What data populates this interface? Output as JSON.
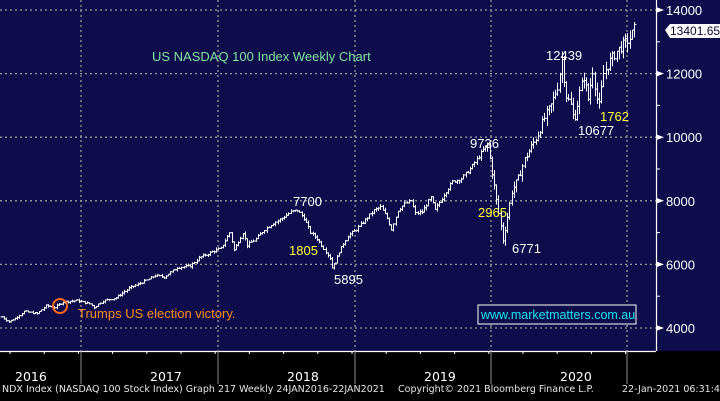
{
  "chart_data": {
    "type": "ohlc-bar",
    "title": "US NASDAQ 100 Index Weekly Chart",
    "xlabel": "",
    "ylabel": "",
    "ylim": [
      3300,
      14200
    ],
    "y_ticks": [
      4000,
      6000,
      8000,
      10000,
      12000,
      14000
    ],
    "x_tick_labels": [
      "2016",
      "2017",
      "2018",
      "2019",
      "2020"
    ],
    "grid": true,
    "last_price_label": "13401.65",
    "period": {
      "start": "2016-01-24",
      "end": "2021-01-22",
      "frequency": "weekly"
    },
    "anchors": [
      {
        "t": 0,
        "v": 4350
      },
      {
        "t": 3,
        "v": 4200
      },
      {
        "t": 6,
        "v": 4300
      },
      {
        "t": 10,
        "v": 4520
      },
      {
        "t": 16,
        "v": 4450
      },
      {
        "t": 20,
        "v": 4700
      },
      {
        "t": 24,
        "v": 4650
      },
      {
        "t": 28,
        "v": 4820
      },
      {
        "t": 34,
        "v": 4860
      },
      {
        "t": 40,
        "v": 4760
      },
      {
        "t": 42,
        "v": 4650
      },
      {
        "t": 46,
        "v": 4850
      },
      {
        "t": 52,
        "v": 4950
      },
      {
        "t": 58,
        "v": 5250
      },
      {
        "t": 66,
        "v": 5500
      },
      {
        "t": 70,
        "v": 5650
      },
      {
        "t": 74,
        "v": 5600
      },
      {
        "t": 80,
        "v": 5900
      },
      {
        "t": 86,
        "v": 5950
      },
      {
        "t": 90,
        "v": 6200
      },
      {
        "t": 96,
        "v": 6400
      },
      {
        "t": 100,
        "v": 6500
      },
      {
        "t": 104,
        "v": 7000
      },
      {
        "t": 106,
        "v": 6450
      },
      {
        "t": 110,
        "v": 7000
      },
      {
        "t": 112,
        "v": 6600
      },
      {
        "t": 116,
        "v": 6800
      },
      {
        "t": 120,
        "v": 7100
      },
      {
        "t": 124,
        "v": 7300
      },
      {
        "t": 128,
        "v": 7450
      },
      {
        "t": 132,
        "v": 7650
      },
      {
        "t": 135,
        "v": 7700
      },
      {
        "t": 138,
        "v": 7450
      },
      {
        "t": 141,
        "v": 7000
      },
      {
        "t": 144,
        "v": 6800
      },
      {
        "t": 147,
        "v": 6500
      },
      {
        "t": 150,
        "v": 6200
      },
      {
        "t": 151,
        "v": 5895
      },
      {
        "t": 154,
        "v": 6400
      },
      {
        "t": 158,
        "v": 6900
      },
      {
        "t": 162,
        "v": 7100
      },
      {
        "t": 166,
        "v": 7400
      },
      {
        "t": 170,
        "v": 7700
      },
      {
        "t": 173,
        "v": 7800
      },
      {
        "t": 176,
        "v": 7450
      },
      {
        "t": 178,
        "v": 7100
      },
      {
        "t": 181,
        "v": 7700
      },
      {
        "t": 184,
        "v": 7900
      },
      {
        "t": 187,
        "v": 8000
      },
      {
        "t": 189,
        "v": 7600
      },
      {
        "t": 192,
        "v": 7650
      },
      {
        "t": 196,
        "v": 8100
      },
      {
        "t": 198,
        "v": 7700
      },
      {
        "t": 202,
        "v": 8200
      },
      {
        "t": 206,
        "v": 8600
      },
      {
        "t": 210,
        "v": 8700
      },
      {
        "t": 214,
        "v": 9000
      },
      {
        "t": 217,
        "v": 9300
      },
      {
        "t": 220,
        "v": 9600
      },
      {
        "t": 222,
        "v": 9736
      },
      {
        "t": 224,
        "v": 8900
      },
      {
        "t": 226,
        "v": 8000
      },
      {
        "t": 228,
        "v": 7200
      },
      {
        "t": 229,
        "v": 6771
      },
      {
        "t": 231,
        "v": 7500
      },
      {
        "t": 233,
        "v": 8300
      },
      {
        "t": 236,
        "v": 8700
      },
      {
        "t": 239,
        "v": 9300
      },
      {
        "t": 242,
        "v": 9700
      },
      {
        "t": 245,
        "v": 10100
      },
      {
        "t": 248,
        "v": 10600
      },
      {
        "t": 251,
        "v": 11000
      },
      {
        "t": 254,
        "v": 11600
      },
      {
        "t": 256,
        "v": 12439
      },
      {
        "t": 258,
        "v": 11300
      },
      {
        "t": 260,
        "v": 11000
      },
      {
        "t": 262,
        "v": 10677
      },
      {
        "t": 264,
        "v": 11400
      },
      {
        "t": 266,
        "v": 11900
      },
      {
        "t": 268,
        "v": 11200
      },
      {
        "t": 270,
        "v": 12100
      },
      {
        "t": 272,
        "v": 11200
      },
      {
        "t": 273,
        "v": 11000
      },
      {
        "t": 275,
        "v": 12000
      },
      {
        "t": 278,
        "v": 12400
      },
      {
        "t": 281,
        "v": 12700
      },
      {
        "t": 284,
        "v": 12900
      },
      {
        "t": 287,
        "v": 13100
      },
      {
        "t": 260.5,
        "v": 10677
      },
      {
        "t": 289,
        "v": 13401.65
      }
    ],
    "annotations": [
      {
        "label": "7700",
        "kind": "price",
        "color": "#ffffff",
        "x_week": 130,
        "value": 7700
      },
      {
        "label": "1805",
        "kind": "points",
        "color": "#ffff33",
        "x_week": 125,
        "value": 6520
      },
      {
        "label": "5895",
        "kind": "price",
        "color": "#ffffff",
        "x_week": 150,
        "value": 5895
      },
      {
        "label": "9736",
        "kind": "price",
        "color": "#ffffff",
        "x_week": 210,
        "value": 9736
      },
      {
        "label": "2965",
        "kind": "points",
        "color": "#ffff33",
        "x_week": 213,
        "value": 7750
      },
      {
        "label": "6771",
        "kind": "price",
        "color": "#ffffff",
        "x_week": 228,
        "value": 6771
      },
      {
        "label": "12439",
        "kind": "price",
        "color": "#ffffff",
        "x_week": 242,
        "value": 12439
      },
      {
        "label": "10677",
        "kind": "price",
        "color": "#ffffff",
        "x_week": 254,
        "value": 10677
      },
      {
        "label": "1762",
        "kind": "points",
        "color": "#ffff33",
        "x_week": 265,
        "value": 10677
      }
    ],
    "event_marker": {
      "label": "Trumps US election victory.",
      "x_week": 41,
      "value": 4650,
      "color": "#ff6a13"
    }
  },
  "colors": {
    "plot_bg": "#0f0c4b",
    "outer_bg": "#000000",
    "bars": "#ffffff",
    "grid": "#9a9a9a",
    "title": "#7ee6a0",
    "axis_text": "#ffffff",
    "website": "#12e8f2"
  },
  "website": "www.marketmatters.com.au",
  "footer": {
    "left": "NDX Index (NASDAQ 100 Stock Index) Graph 217  Weekly 24JAN2016-22JAN2021",
    "center": "Copyright© 2021 Bloomberg Finance L.P.",
    "right": "22-Jan-2021 06:31:45"
  }
}
